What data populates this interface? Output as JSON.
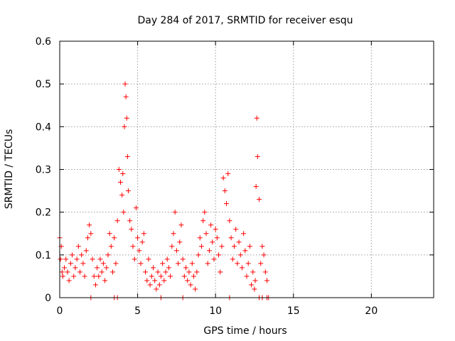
{
  "chart_data": {
    "type": "scatter",
    "title": "Day 284 of 2017, SRMTID for receiver esqu",
    "xlabel": "GPS time / hours",
    "ylabel": "SRMTID / TECUs",
    "xlim": [
      0,
      24
    ],
    "ylim": [
      0,
      0.6
    ],
    "xticks": [
      0,
      5,
      10,
      15,
      20
    ],
    "xtick_labels": [
      "0",
      "5",
      "10",
      "15",
      "20"
    ],
    "yticks": [
      0,
      0.1,
      0.2,
      0.3,
      0.4,
      0.5,
      0.6
    ],
    "ytick_labels": [
      "0",
      "0.1",
      "0.2",
      "0.3",
      "0.4",
      "0.5",
      "0.6"
    ],
    "grid": true,
    "marker": "+",
    "color": "#ff0000",
    "series": [
      {
        "name": "SRMTID",
        "x": [
          0.0,
          0.05,
          0.1,
          0.15,
          0.2,
          0.3,
          0.4,
          0.5,
          0.6,
          0.7,
          0.8,
          0.9,
          1.0,
          1.1,
          1.2,
          1.3,
          1.4,
          1.5,
          1.6,
          1.7,
          1.8,
          1.9,
          2.0,
          2.1,
          2.2,
          2.3,
          2.4,
          2.5,
          2.6,
          2.7,
          2.8,
          2.9,
          3.0,
          3.1,
          3.2,
          3.3,
          3.4,
          3.5,
          3.6,
          3.7,
          3.8,
          3.9,
          4.0,
          4.05,
          4.1,
          4.15,
          4.2,
          4.25,
          4.3,
          4.35,
          4.4,
          4.5,
          4.6,
          4.7,
          4.8,
          4.9,
          5.0,
          5.1,
          5.2,
          5.3,
          5.4,
          5.5,
          5.6,
          5.7,
          5.8,
          5.9,
          6.0,
          6.1,
          6.2,
          6.3,
          6.4,
          6.5,
          6.6,
          6.7,
          6.8,
          6.9,
          7.0,
          7.1,
          7.2,
          7.3,
          7.4,
          7.5,
          7.6,
          7.7,
          7.8,
          7.9,
          8.0,
          8.1,
          8.2,
          8.3,
          8.4,
          8.5,
          8.6,
          8.7,
          8.8,
          8.9,
          9.0,
          9.1,
          9.2,
          9.3,
          9.4,
          9.5,
          9.6,
          9.7,
          9.8,
          9.9,
          10.0,
          10.1,
          10.2,
          10.3,
          10.4,
          10.5,
          10.6,
          10.7,
          10.8,
          10.9,
          11.0,
          11.1,
          11.2,
          11.3,
          11.4,
          11.5,
          11.6,
          11.7,
          11.8,
          11.9,
          12.0,
          12.1,
          12.2,
          12.3,
          12.4,
          12.5,
          12.55,
          12.6,
          12.65,
          12.7,
          12.8,
          12.9,
          13.0,
          13.1,
          13.2,
          13.3,
          2.0,
          3.5,
          3.7,
          6.5,
          7.9,
          10.9,
          12.8,
          13.0,
          13.3,
          13.4
        ],
        "y": [
          0.14,
          0.09,
          0.12,
          0.06,
          0.05,
          0.07,
          0.09,
          0.06,
          0.04,
          0.08,
          0.1,
          0.05,
          0.07,
          0.09,
          0.12,
          0.06,
          0.1,
          0.08,
          0.05,
          0.11,
          0.14,
          0.17,
          0.15,
          0.09,
          0.05,
          0.03,
          0.07,
          0.05,
          0.09,
          0.06,
          0.08,
          0.04,
          0.07,
          0.1,
          0.15,
          0.12,
          0.06,
          0.14,
          0.08,
          0.18,
          0.3,
          0.27,
          0.24,
          0.29,
          0.2,
          0.4,
          0.5,
          0.47,
          0.42,
          0.33,
          0.25,
          0.18,
          0.16,
          0.12,
          0.09,
          0.21,
          0.14,
          0.11,
          0.08,
          0.13,
          0.15,
          0.06,
          0.04,
          0.09,
          0.03,
          0.05,
          0.07,
          0.04,
          0.02,
          0.06,
          0.03,
          0.05,
          0.08,
          0.04,
          0.06,
          0.09,
          0.07,
          0.05,
          0.12,
          0.15,
          0.2,
          0.11,
          0.08,
          0.13,
          0.17,
          0.09,
          0.05,
          0.07,
          0.04,
          0.06,
          0.03,
          0.08,
          0.05,
          0.02,
          0.06,
          0.1,
          0.14,
          0.12,
          0.18,
          0.2,
          0.15,
          0.08,
          0.11,
          0.17,
          0.13,
          0.09,
          0.16,
          0.14,
          0.1,
          0.06,
          0.12,
          0.28,
          0.25,
          0.22,
          0.29,
          0.18,
          0.14,
          0.09,
          0.12,
          0.16,
          0.08,
          0.13,
          0.1,
          0.07,
          0.15,
          0.11,
          0.05,
          0.08,
          0.12,
          0.03,
          0.06,
          0.02,
          0.04,
          0.26,
          0.42,
          0.33,
          0.23,
          0.08,
          0.12,
          0.1,
          0.06,
          0.04,
          0.0,
          0.0,
          0.0,
          0.0,
          0.0,
          0.0,
          0.0,
          0.0,
          0.0,
          0.0
        ]
      }
    ]
  }
}
